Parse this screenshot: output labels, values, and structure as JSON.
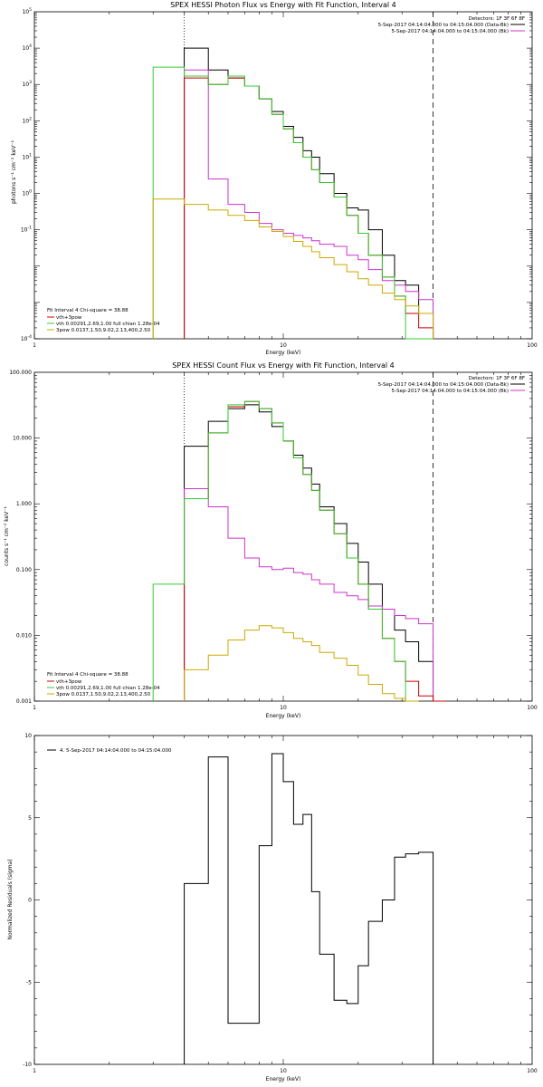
{
  "chart_data": [
    {
      "type": "line",
      "title": "SPEX HESSI Photon Flux vs Energy with Fit Function, Interval 4",
      "xlabel": "Energy (keV)",
      "ylabel": "photons s⁻¹ cm⁻² keV⁻¹",
      "xscale": "log",
      "yscale": "log",
      "xlim": [
        1,
        100
      ],
      "ylim": [
        0.0001,
        100000
      ],
      "xticks": [
        {
          "v": 1,
          "label": "1"
        },
        {
          "v": 10,
          "label": "10"
        },
        {
          "v": 100,
          "label": "100"
        }
      ],
      "yticks": [
        {
          "v": 100000,
          "base": "10",
          "exp": "5"
        },
        {
          "v": 10000,
          "base": "10",
          "exp": "4"
        },
        {
          "v": 1000,
          "base": "10",
          "exp": "3"
        },
        {
          "v": 100,
          "base": "10",
          "exp": "2"
        },
        {
          "v": 10,
          "base": "10",
          "exp": "1"
        },
        {
          "v": 1,
          "base": "10",
          "exp": "0"
        },
        {
          "v": 0.1,
          "base": "10",
          "exp": "-1"
        },
        {
          "v": 0.0001,
          "base": "10",
          "exp": "-4"
        }
      ],
      "vlines": [
        {
          "x": 4.0,
          "style": "dotted"
        },
        {
          "x": 40.0,
          "style": "dashed"
        }
      ],
      "top_legend": {
        "header": "Detectors: 1F 3F 6F 8F",
        "items": [
          {
            "label": "5-Sep-2017 04:14:04.000 to 04:15:04.000 (Data-Bk)",
            "color": "#000000"
          },
          {
            "label": "5-Sep-2017 04:14:04.000 to 04:15:04.000 (Bk)",
            "color": "#cc33cc"
          }
        ]
      },
      "fit_legend": {
        "header": "Fit Interval  4   Chi-square = 38.88",
        "items": [
          {
            "label": "vth+3pow",
            "color": "#cc0000"
          },
          {
            "label": "vth 0.00291,2.69,1.00  full chian 1.28e-04",
            "color": "#33cc33"
          },
          {
            "label": "3pow 0.0137,1.50,9.02,2.13,400,2.50",
            "color": "#ccaa00"
          }
        ]
      },
      "bin_edges": [
        3.0,
        4.0,
        5.0,
        6.0,
        7.0,
        8.0,
        9.0,
        10.0,
        11.0,
        12.0,
        13.0,
        14.0,
        16.0,
        18.0,
        20.0,
        22.0,
        25.0,
        28.0,
        31.0,
        35.0,
        40.0
      ],
      "series": [
        {
          "name": "Data-Bk",
          "color": "#000000",
          "values": [
            null,
            10000,
            2500,
            1500,
            900,
            400,
            180,
            70,
            35,
            15,
            10,
            3.5,
            1.0,
            0.4,
            0.35,
            0.1,
            0.02,
            0.004,
            0.003,
            0.0005
          ]
        },
        {
          "name": "Bk",
          "color": "#cc33cc",
          "values": [
            null,
            2500,
            2.5,
            0.5,
            0.3,
            0.15,
            0.1,
            0.08,
            0.07,
            0.06,
            0.05,
            0.04,
            0.035,
            0.02,
            0.015,
            0.008,
            0.004,
            0.003,
            0.002,
            0.0012
          ]
        },
        {
          "name": "vth+3pow",
          "color": "#cc0000",
          "values": [
            null,
            1500,
            1000,
            1500,
            900,
            400,
            150,
            60,
            25,
            10,
            4.5,
            2.0,
            0.8,
            0.25,
            0.08,
            0.02,
            0.005,
            0.0015,
            0.0005,
            0.0002
          ]
        },
        {
          "name": "vth",
          "color": "#33cc33",
          "values": [
            3000,
            1700,
            1000,
            1700,
            900,
            400,
            150,
            60,
            25,
            10,
            4.5,
            2.0,
            0.8,
            0.25,
            0.08,
            0.02,
            0.005,
            0.0015,
            0.0001,
            0.0001
          ]
        },
        {
          "name": "3pow",
          "color": "#ccaa00",
          "values": [
            0.7,
            0.5,
            0.35,
            0.25,
            0.18,
            0.12,
            0.09,
            0.065,
            0.048,
            0.035,
            0.025,
            0.017,
            0.011,
            0.007,
            0.0045,
            0.003,
            0.0018,
            0.0012,
            0.0008,
            0.0005
          ]
        }
      ]
    },
    {
      "type": "line",
      "title": "SPEX HESSI Count Flux vs Energy with Fit Function, Interval 4",
      "xlabel": "Energy (keV)",
      "ylabel": "counts s⁻¹ cm⁻² keV⁻¹",
      "xscale": "log",
      "yscale": "log",
      "xlim": [
        1,
        100
      ],
      "ylim": [
        0.001,
        100
      ],
      "xticks": [
        {
          "v": 1,
          "label": "1"
        },
        {
          "v": 10,
          "label": "10"
        },
        {
          "v": 100,
          "label": "100"
        }
      ],
      "yticks": [
        {
          "v": 100,
          "label": "100.000"
        },
        {
          "v": 10,
          "label": "10.000"
        },
        {
          "v": 1,
          "label": "1.000"
        },
        {
          "v": 0.1,
          "label": "0.100"
        },
        {
          "v": 0.01,
          "label": "0.010"
        },
        {
          "v": 0.001,
          "label": "0.001"
        }
      ],
      "vlines": [
        {
          "x": 4.0,
          "style": "dotted"
        },
        {
          "x": 40.0,
          "style": "dashed"
        }
      ],
      "top_legend": {
        "header": "Detectors: 1F 3F 6F 8F",
        "items": [
          {
            "label": "5-Sep-2017 04:14:04.000 to 04:15:04.000 (Data-Bk)",
            "color": "#000000"
          },
          {
            "label": "5-Sep-2017 04:14:04.000 to 04:15:04.000 (Bk)",
            "color": "#cc33cc"
          }
        ]
      },
      "fit_legend": {
        "header": "Fit Interval  4   Chi-square = 38.88",
        "items": [
          {
            "label": "vth+3pow",
            "color": "#cc0000"
          },
          {
            "label": "vth 0.00291,2.69,1.00  full chian 1.28e-04",
            "color": "#33cc33"
          },
          {
            "label": "3pow 0.0137,1.50,9.02,2.13,400,2.50",
            "color": "#ccaa00"
          }
        ]
      },
      "bin_edges": [
        3.0,
        4.0,
        5.0,
        6.0,
        7.0,
        8.0,
        9.0,
        10.0,
        11.0,
        12.0,
        13.0,
        14.0,
        16.0,
        18.0,
        20.0,
        22.0,
        25.0,
        28.0,
        31.0,
        35.0,
        40.0,
        45.0
      ],
      "series": [
        {
          "name": "Data-Bk",
          "color": "#000000",
          "values": [
            null,
            7.5,
            18,
            28,
            32,
            25,
            15,
            9,
            5.5,
            3.5,
            2,
            0.9,
            0.5,
            0.25,
            0.13,
            0.06,
            0.025,
            0.012,
            0.008,
            0.004,
            0.001
          ]
        },
        {
          "name": "Bk",
          "color": "#cc33cc",
          "values": [
            null,
            1.7,
            0.9,
            0.3,
            0.15,
            0.11,
            0.1,
            0.105,
            0.09,
            0.085,
            0.07,
            0.06,
            0.045,
            0.04,
            0.035,
            0.028,
            0.025,
            0.02,
            0.018,
            0.015,
            null
          ]
        },
        {
          "name": "vth+3pow",
          "color": "#cc0000",
          "values": [
            null,
            1.2,
            12,
            30,
            36,
            28,
            17,
            9,
            5,
            2.8,
            1.6,
            0.8,
            0.35,
            0.15,
            0.06,
            0.025,
            0.009,
            0.004,
            0.002,
            0.0012,
            0.001
          ]
        },
        {
          "name": "vth",
          "color": "#33cc33",
          "values": [
            0.06,
            1.2,
            12,
            32,
            36,
            28,
            17,
            9,
            5,
            2.8,
            1.6,
            0.8,
            0.35,
            0.15,
            0.06,
            0.025,
            0.009,
            0.004,
            0.001,
            null,
            null
          ]
        },
        {
          "name": "3pow",
          "color": "#ccaa00",
          "values": [
            null,
            0.003,
            0.005,
            0.0085,
            0.012,
            0.014,
            0.013,
            0.011,
            0.009,
            0.008,
            0.007,
            0.0055,
            0.0045,
            0.0035,
            0.0025,
            0.0018,
            0.0013,
            0.0011,
            0.001,
            null,
            null
          ]
        }
      ]
    },
    {
      "type": "line",
      "title": "",
      "xlabel": "Energy (keV)",
      "ylabel": "Normalized Residuals (sigma)",
      "xscale": "log",
      "yscale": "linear",
      "xlim": [
        1,
        100
      ],
      "ylim": [
        -10,
        10
      ],
      "xticks": [
        {
          "v": 1,
          "label": "1"
        },
        {
          "v": 10,
          "label": "10"
        },
        {
          "v": 100,
          "label": "100"
        }
      ],
      "yticks": [
        {
          "v": 10,
          "label": "10"
        },
        {
          "v": 5,
          "label": "5"
        },
        {
          "v": 0,
          "label": "0"
        },
        {
          "v": -5,
          "label": "-5"
        },
        {
          "v": -10,
          "label": "-10"
        }
      ],
      "legend_text": "4.  5-Sep-2017 04:14:04.000 to 04:15:04.000",
      "bin_edges": [
        4.0,
        5.0,
        6.0,
        7.0,
        8.0,
        9.0,
        10.0,
        11.0,
        12.0,
        13.0,
        14.0,
        16.0,
        18.0,
        20.0,
        22.0,
        25.0,
        28.0,
        31.0,
        35.0,
        40.0
      ],
      "series": [
        {
          "name": "",
          "color": "#000000",
          "values": [
            1.0,
            8.7,
            -7.5,
            -7.5,
            3.3,
            8.9,
            7.2,
            4.6,
            5.2,
            0.5,
            -3.3,
            -6.1,
            -6.3,
            -4.0,
            -1.3,
            0.0,
            2.6,
            2.8,
            2.9
          ]
        }
      ]
    }
  ]
}
